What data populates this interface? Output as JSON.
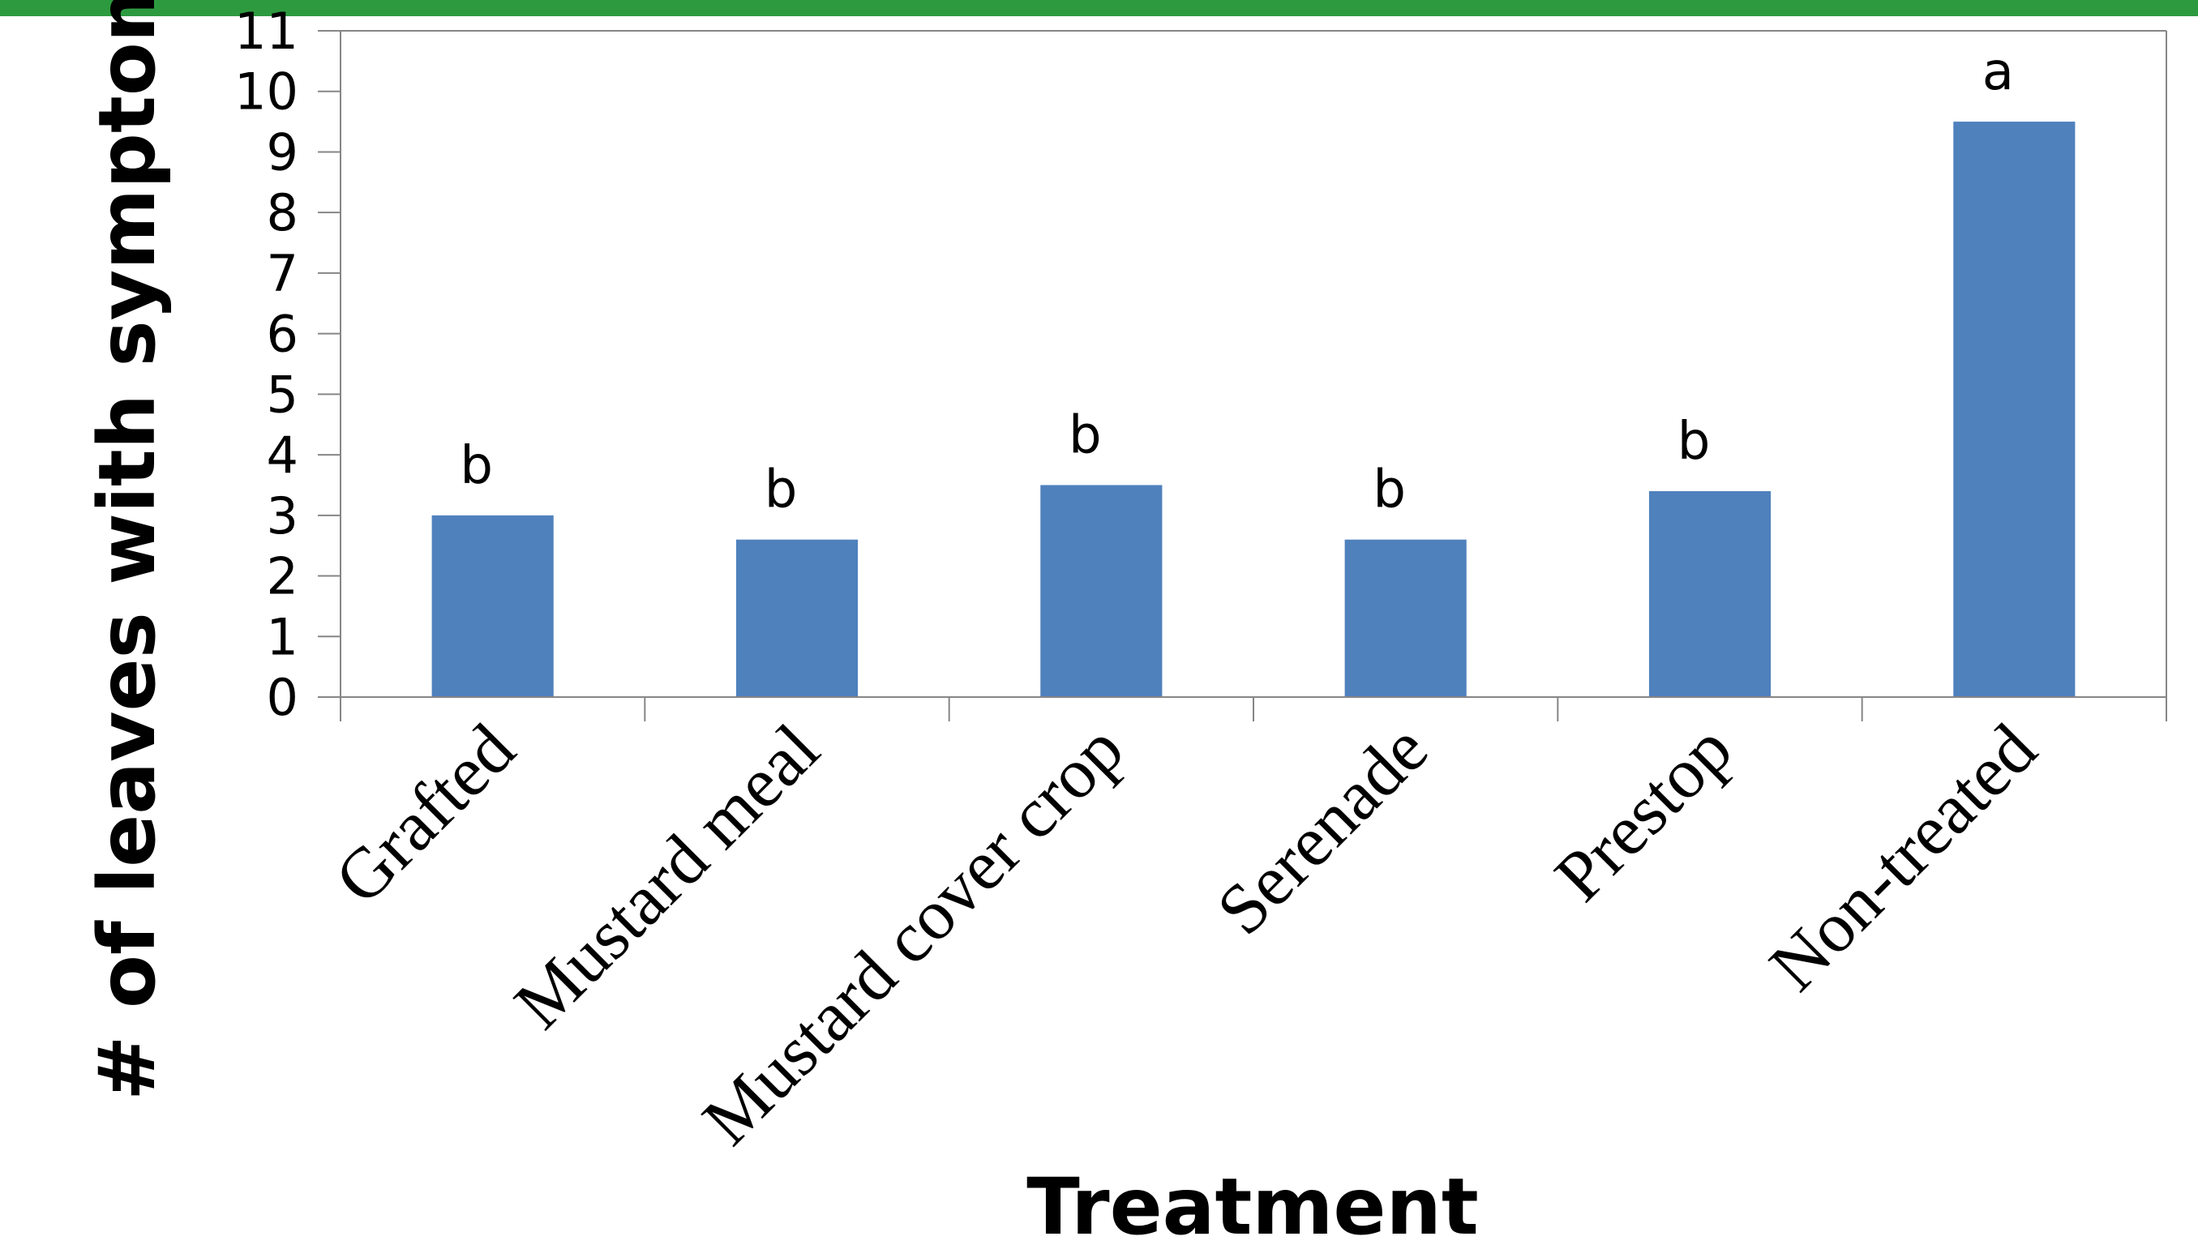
{
  "colors": {
    "top_band": "#2e9a3f",
    "bar": "#4f81bd",
    "axis": "#868686"
  },
  "chart_data": {
    "type": "bar",
    "categories": [
      "Grafted",
      "Mustard meal",
      "Mustard cover crop",
      "Serenade",
      "Prestop",
      "Non-treated"
    ],
    "values": [
      3.0,
      2.6,
      3.5,
      2.6,
      3.4,
      9.5
    ],
    "significance_letters": [
      "b",
      "b",
      "b",
      "b",
      "b",
      "a"
    ],
    "xlabel": "Treatment",
    "ylabel": "# of leaves with symptom",
    "ylim": [
      0,
      11
    ],
    "yticks": [
      0,
      1,
      2,
      3,
      4,
      5,
      6,
      7,
      8,
      9,
      10,
      11
    ],
    "grid": false,
    "legend": "none"
  }
}
